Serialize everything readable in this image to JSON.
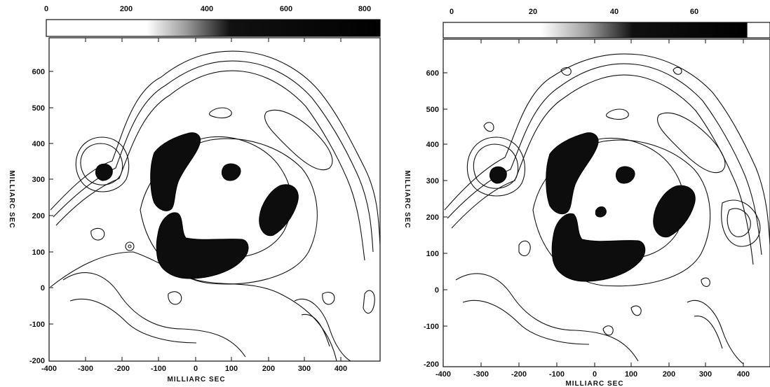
{
  "panels": [
    {
      "id": "left",
      "colorbar_ticks": [
        "0",
        "200",
        "400",
        "600",
        "800"
      ],
      "y_ticks": [
        "600",
        "500",
        "400",
        "300",
        "200",
        "100",
        "0",
        "-100",
        "-200"
      ],
      "x_ticks": [
        "-400",
        "-300",
        "-200",
        "-100",
        "0",
        "100",
        "200",
        "300",
        "400"
      ],
      "ylabel": "MILLIARC SEC",
      "xlabel": "MILLIARC SEC"
    },
    {
      "id": "right",
      "colorbar_ticks": [
        "0",
        "20",
        "40",
        "60"
      ],
      "y_ticks": [
        "600",
        "500",
        "400",
        "300",
        "200",
        "100",
        "0",
        "-100",
        "-200"
      ],
      "x_ticks": [
        "-400",
        "-300",
        "-200",
        "-100",
        "0",
        "100",
        "200",
        "300",
        "400"
      ],
      "ylabel": "MILLIARC SEC",
      "xlabel": "MILLIARC SEC"
    }
  ],
  "colors": {
    "ink": "#111111",
    "paper": "#ffffff"
  }
}
